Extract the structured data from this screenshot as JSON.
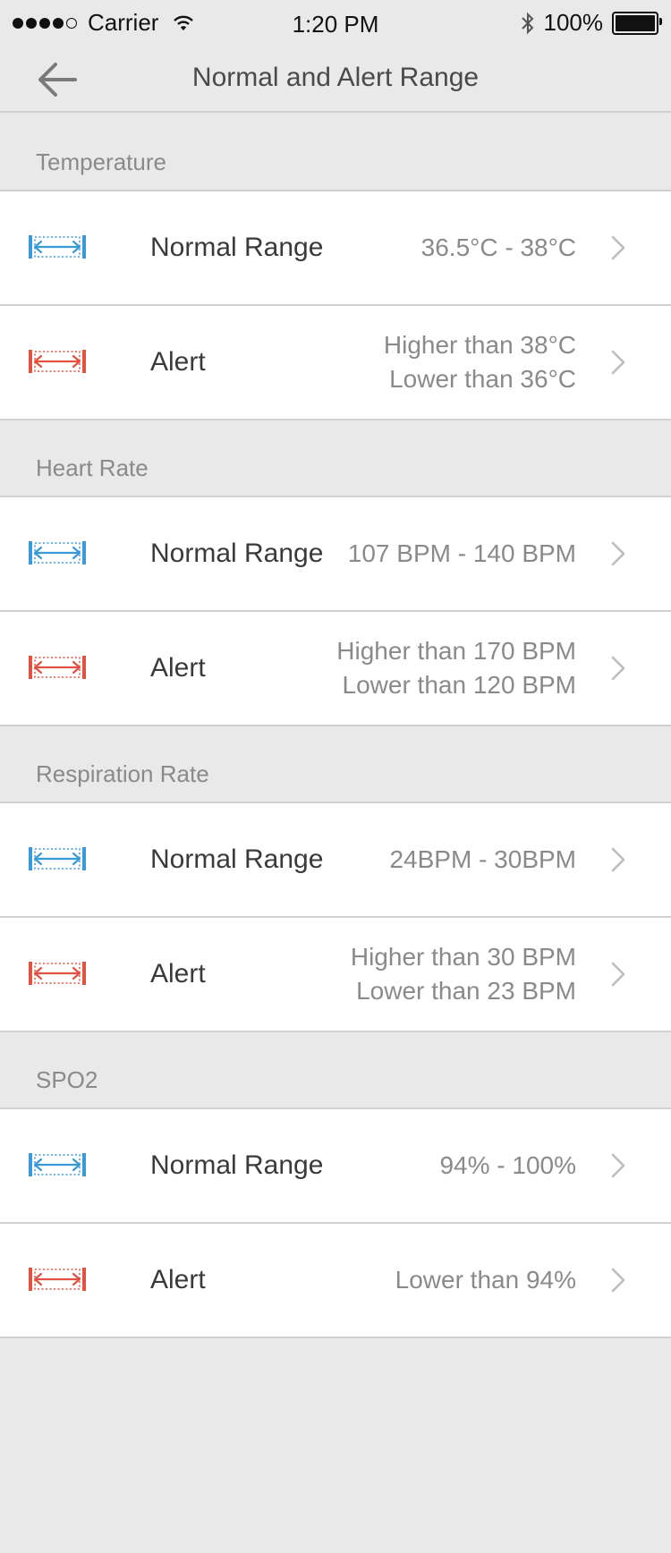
{
  "status_bar": {
    "carrier": "Carrier",
    "time": "1:20 PM",
    "battery": "100%"
  },
  "nav": {
    "title": "Normal and Alert Range"
  },
  "colors": {
    "normal_icon": "#3a9ad9",
    "alert_icon": "#e25241"
  },
  "sections": [
    {
      "title": "Temperature",
      "normal": {
        "label": "Normal Range",
        "value_line1": "36.5°C - 38°C",
        "value_line2": ""
      },
      "alert": {
        "label": "Alert",
        "value_line1": "Higher than 38°C",
        "value_line2": "Lower than 36°C"
      }
    },
    {
      "title": "Heart Rate",
      "normal": {
        "label": "Normal Range",
        "value_line1": "107 BPM - 140 BPM",
        "value_line2": ""
      },
      "alert": {
        "label": "Alert",
        "value_line1": "Higher than 170 BPM",
        "value_line2": "Lower than 120 BPM"
      }
    },
    {
      "title": "Respiration Rate",
      "normal": {
        "label": "Normal Range",
        "value_line1": "24BPM - 30BPM",
        "value_line2": ""
      },
      "alert": {
        "label": "Alert",
        "value_line1": "Higher than 30 BPM",
        "value_line2": "Lower than 23 BPM"
      }
    },
    {
      "title": "SPO2",
      "normal": {
        "label": "Normal Range",
        "value_line1": "94% - 100%",
        "value_line2": ""
      },
      "alert": {
        "label": "Alert",
        "value_line1": "Lower than 94%",
        "value_line2": ""
      }
    }
  ]
}
